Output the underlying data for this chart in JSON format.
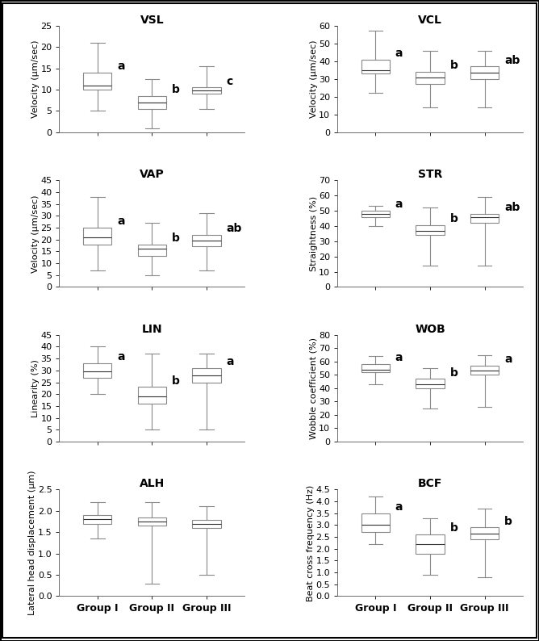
{
  "plots": {
    "VSL": {
      "title": "VSL",
      "ylabel": "Velocity (μm/sec)",
      "ylim": [
        0,
        25
      ],
      "yticks": [
        0,
        5,
        10,
        15,
        20,
        25
      ],
      "groups": {
        "Group I": {
          "whislo": 5.0,
          "q1": 10.0,
          "med": 11.0,
          "q3": 14.0,
          "whishi": 21.0
        },
        "Group II": {
          "whislo": 1.0,
          "q1": 5.5,
          "med": 7.0,
          "q3": 8.5,
          "whishi": 12.5
        },
        "Group III": {
          "whislo": 5.5,
          "q1": 9.0,
          "med": 9.8,
          "q3": 10.5,
          "whishi": 15.5
        }
      },
      "letters": {
        "Group I": "a",
        "Group II": "b",
        "Group III": "c"
      }
    },
    "VCL": {
      "title": "VCL",
      "ylabel": "Velocity (μm/sec)",
      "ylim": [
        0,
        60
      ],
      "yticks": [
        0,
        10,
        20,
        30,
        40,
        50,
        60
      ],
      "groups": {
        "Group I": {
          "whislo": 22.0,
          "q1": 33.0,
          "med": 35.0,
          "q3": 41.0,
          "whishi": 57.0
        },
        "Group II": {
          "whislo": 14.0,
          "q1": 27.0,
          "med": 31.0,
          "q3": 34.0,
          "whishi": 46.0
        },
        "Group III": {
          "whislo": 14.0,
          "q1": 30.0,
          "med": 33.5,
          "q3": 37.0,
          "whishi": 46.0
        }
      },
      "letters": {
        "Group I": "a",
        "Group II": "b",
        "Group III": "ab"
      }
    },
    "VAP": {
      "title": "VAP",
      "ylabel": "Velocity (μm/sec)",
      "ylim": [
        0,
        45
      ],
      "yticks": [
        0,
        5,
        10,
        15,
        20,
        25,
        30,
        35,
        40,
        45
      ],
      "groups": {
        "Group I": {
          "whislo": 7.0,
          "q1": 18.0,
          "med": 21.0,
          "q3": 25.0,
          "whishi": 38.0
        },
        "Group II": {
          "whislo": 5.0,
          "q1": 13.0,
          "med": 16.0,
          "q3": 18.0,
          "whishi": 27.0
        },
        "Group III": {
          "whislo": 7.0,
          "q1": 17.0,
          "med": 19.5,
          "q3": 22.0,
          "whishi": 31.0
        }
      },
      "letters": {
        "Group I": "a",
        "Group II": "b",
        "Group III": "ab"
      }
    },
    "STR": {
      "title": "STR",
      "ylabel": "Straightness (%)",
      "ylim": [
        0,
        70
      ],
      "yticks": [
        0,
        10,
        20,
        30,
        40,
        50,
        60,
        70
      ],
      "groups": {
        "Group I": {
          "whislo": 40.0,
          "q1": 46.0,
          "med": 48.0,
          "q3": 50.0,
          "whishi": 53.0
        },
        "Group II": {
          "whislo": 14.0,
          "q1": 34.0,
          "med": 37.0,
          "q3": 40.5,
          "whishi": 52.0
        },
        "Group III": {
          "whislo": 14.0,
          "q1": 42.0,
          "med": 46.0,
          "q3": 48.0,
          "whishi": 59.0
        }
      },
      "letters": {
        "Group I": "a",
        "Group II": "b",
        "Group III": "ab"
      }
    },
    "LIN": {
      "title": "LIN",
      "ylabel": "Linearity (%)",
      "ylim": [
        0,
        45
      ],
      "yticks": [
        0,
        5,
        10,
        15,
        20,
        25,
        30,
        35,
        40,
        45
      ],
      "groups": {
        "Group I": {
          "whislo": 20.0,
          "q1": 27.0,
          "med": 29.5,
          "q3": 33.0,
          "whishi": 40.0
        },
        "Group II": {
          "whislo": 5.0,
          "q1": 16.0,
          "med": 19.0,
          "q3": 23.0,
          "whishi": 37.0
        },
        "Group III": {
          "whislo": 5.0,
          "q1": 25.0,
          "med": 28.0,
          "q3": 31.0,
          "whishi": 37.0
        }
      },
      "letters": {
        "Group I": "a",
        "Group II": "b",
        "Group III": "a"
      }
    },
    "WOB": {
      "title": "WOB",
      "ylabel": "Wobble coefficient (%)",
      "ylim": [
        0,
        80
      ],
      "yticks": [
        0,
        10,
        20,
        30,
        40,
        50,
        60,
        70,
        80
      ],
      "groups": {
        "Group I": {
          "whislo": 43.0,
          "q1": 52.0,
          "med": 54.0,
          "q3": 58.0,
          "whishi": 64.0
        },
        "Group II": {
          "whislo": 25.0,
          "q1": 40.0,
          "med": 43.0,
          "q3": 47.0,
          "whishi": 55.0
        },
        "Group III": {
          "whislo": 26.0,
          "q1": 50.0,
          "med": 53.0,
          "q3": 57.0,
          "whishi": 65.0
        }
      },
      "letters": {
        "Group I": "a",
        "Group II": "b",
        "Group III": "a"
      }
    },
    "ALH": {
      "title": "ALH",
      "ylabel": "Lateral head displacement (μm)",
      "ylim": [
        0,
        2.5
      ],
      "yticks": [
        0,
        0.5,
        1.0,
        1.5,
        2.0,
        2.5
      ],
      "groups": {
        "Group I": {
          "whislo": 1.35,
          "q1": 1.7,
          "med": 1.8,
          "q3": 1.9,
          "whishi": 2.2
        },
        "Group II": {
          "whislo": 0.3,
          "q1": 1.65,
          "med": 1.75,
          "q3": 1.85,
          "whishi": 2.2
        },
        "Group III": {
          "whislo": 0.5,
          "q1": 1.6,
          "med": 1.7,
          "q3": 1.78,
          "whishi": 2.1
        }
      },
      "letters": {
        "Group I": null,
        "Group II": null,
        "Group III": null
      }
    },
    "BCF": {
      "title": "BCF",
      "ylabel": "Beat cross frequency (Hz)",
      "ylim": [
        0,
        4.5
      ],
      "yticks": [
        0,
        0.5,
        1.0,
        1.5,
        2.0,
        2.5,
        3.0,
        3.5,
        4.0,
        4.5
      ],
      "groups": {
        "Group I": {
          "whislo": 2.2,
          "q1": 2.7,
          "med": 3.0,
          "q3": 3.5,
          "whishi": 4.2
        },
        "Group II": {
          "whislo": 0.9,
          "q1": 1.8,
          "med": 2.2,
          "q3": 2.6,
          "whishi": 3.3
        },
        "Group III": {
          "whislo": 0.8,
          "q1": 2.4,
          "med": 2.65,
          "q3": 2.9,
          "whishi": 3.7
        }
      },
      "letters": {
        "Group I": "a",
        "Group II": "b",
        "Group III": "b"
      }
    }
  },
  "plot_order": [
    "VSL",
    "VCL",
    "VAP",
    "STR",
    "LIN",
    "WOB",
    "ALH",
    "BCF"
  ],
  "groups": [
    "Group I",
    "Group II",
    "Group III"
  ],
  "title_fontsize": 10,
  "label_fontsize": 8,
  "tick_fontsize": 8,
  "letter_fontsize": 10,
  "xlabel_fontsize": 9
}
